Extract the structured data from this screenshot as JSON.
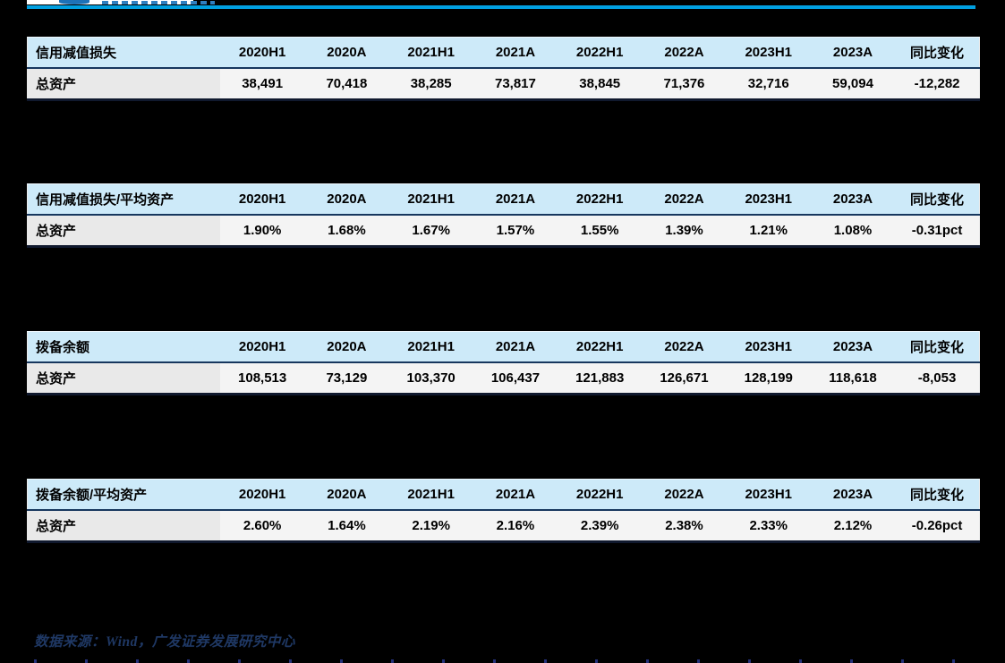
{
  "colors": {
    "page_background": "#000000",
    "top_rule_blue": "#009FE0",
    "table_header_fill": "#CDEAF9",
    "table_row_fill": "#F4F4F4",
    "table_label_fill": "#E9E9E9",
    "header_divider_navy": "#17375E",
    "source_text_navy": "#1F3864"
  },
  "tables": [
    {
      "title": "信用减值损失",
      "columns": [
        "2020H1",
        "2020A",
        "2021H1",
        "2021A",
        "2022H1",
        "2022A",
        "2023H1",
        "2023A",
        "同比变化"
      ],
      "rows": [
        {
          "label": "总资产",
          "values": [
            "38,491",
            "70,418",
            "38,285",
            "73,817",
            "38,845",
            "71,376",
            "32,716",
            "59,094",
            "-12,282"
          ]
        }
      ]
    },
    {
      "title": "信用减值损失/平均资产",
      "columns": [
        "2020H1",
        "2020A",
        "2021H1",
        "2021A",
        "2022H1",
        "2022A",
        "2023H1",
        "2023A",
        "同比变化"
      ],
      "rows": [
        {
          "label": "总资产",
          "values": [
            "1.90%",
            "1.68%",
            "1.67%",
            "1.57%",
            "1.55%",
            "1.39%",
            "1.21%",
            "1.08%",
            "-0.31pct"
          ]
        }
      ]
    },
    {
      "title": "拨备余额",
      "columns": [
        "2020H1",
        "2020A",
        "2021H1",
        "2021A",
        "2022H1",
        "2022A",
        "2023H1",
        "2023A",
        "同比变化"
      ],
      "rows": [
        {
          "label": "总资产",
          "values": [
            "108,513",
            "73,129",
            "103,370",
            "106,437",
            "121,883",
            "126,671",
            "128,199",
            "118,618",
            "-8,053"
          ]
        }
      ]
    },
    {
      "title": "拨备余额/平均资产",
      "columns": [
        "2020H1",
        "2020A",
        "2021H1",
        "2021A",
        "2022H1",
        "2022A",
        "2023H1",
        "2023A",
        "同比变化"
      ],
      "rows": [
        {
          "label": "总资产",
          "values": [
            "2.60%",
            "1.64%",
            "2.19%",
            "2.16%",
            "2.39%",
            "2.38%",
            "2.33%",
            "2.12%",
            "-0.26pct"
          ]
        }
      ]
    }
  ],
  "footer": {
    "source_note": "数据来源：Wind，广发证券发展研究中心"
  }
}
